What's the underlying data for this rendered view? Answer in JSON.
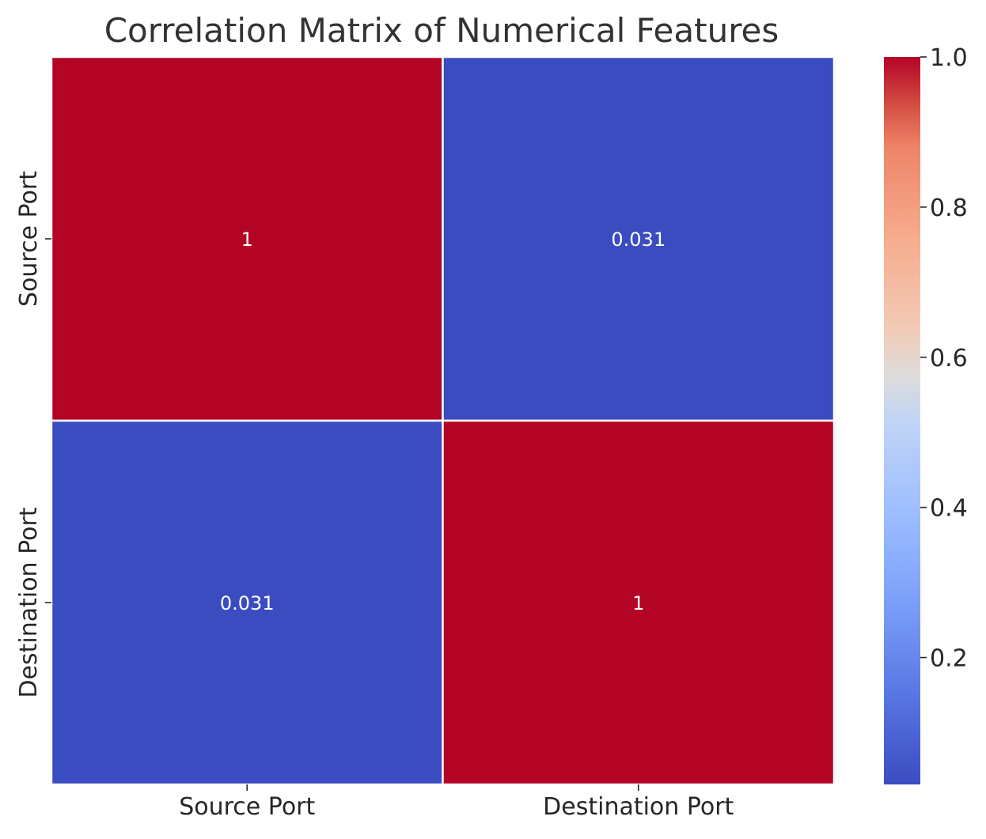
{
  "chart_data": {
    "type": "heatmap",
    "title": "Correlation Matrix of Numerical Features",
    "x_categories": [
      "Source Port",
      "Destination Port"
    ],
    "y_categories": [
      "Source Port",
      "Destination Port"
    ],
    "values": [
      [
        1,
        0.031
      ],
      [
        0.031,
        1
      ]
    ],
    "annotations": [
      [
        "1",
        "0.031"
      ],
      [
        "0.031",
        "1"
      ]
    ],
    "colormap": "coolwarm",
    "colorbar": {
      "range": [
        0.031,
        1.0
      ],
      "ticks": [
        0.2,
        0.4,
        0.6,
        0.8,
        1.0
      ],
      "tick_labels": [
        "0.2",
        "0.4",
        "0.6",
        "0.8",
        "1.0"
      ],
      "position": "right"
    },
    "colors": {
      "low": "#3b4cc0",
      "high": "#b40426",
      "cell_border": "#ffffff",
      "annotation_text": "#ffffff"
    }
  }
}
